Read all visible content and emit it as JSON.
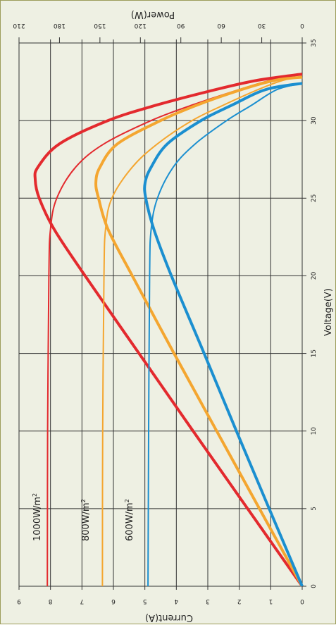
{
  "chart_data": {
    "type": "line",
    "orientation": "rotated-90-clockwise",
    "xlabel": "Voltage(V)",
    "ylabel_left": "Current(A)",
    "ylabel_right": "Power(W)",
    "xlim": [
      0,
      35
    ],
    "ylim_current": [
      0,
      9
    ],
    "ylim_power": [
      0,
      210
    ],
    "x_ticks": [
      "0",
      "5",
      "10",
      "15",
      "20",
      "25",
      "30",
      "35"
    ],
    "current_ticks": [
      "0",
      "1",
      "2",
      "3",
      "4",
      "5",
      "6",
      "7",
      "8",
      "9"
    ],
    "power_ticks": [
      "0",
      "30",
      "60",
      "90",
      "120",
      "150",
      "180",
      "210"
    ],
    "grid": true,
    "irradiance_labels": [
      {
        "base": "1000W/m",
        "sup": "2",
        "color": "#e32a2e"
      },
      {
        "base": "800W/m",
        "sup": "2",
        "color": "#f4a630"
      },
      {
        "base": "600W/m",
        "sup": "2",
        "color": "#1b8fd0"
      }
    ],
    "series": [
      {
        "name": "1000W/m2",
        "color": "#e32a2e",
        "isc": 8.1,
        "current_points": [
          [
            0,
            8.1
          ],
          [
            10,
            8.09
          ],
          [
            20,
            8.05
          ],
          [
            23,
            8.0
          ],
          [
            25,
            7.8
          ],
          [
            27,
            7.2
          ],
          [
            28.5,
            6.3
          ],
          [
            30,
            4.8
          ],
          [
            31,
            3.5
          ],
          [
            32,
            2.0
          ],
          [
            32.6,
            1.0
          ],
          [
            33.0,
            0.0
          ]
        ],
        "power_points": [
          [
            0,
            0
          ],
          [
            5,
            40.5
          ],
          [
            10,
            80.9
          ],
          [
            15,
            121
          ],
          [
            20,
            161
          ],
          [
            23,
            184
          ],
          [
            25,
            195
          ],
          [
            26.2,
            198
          ],
          [
            27,
            196
          ],
          [
            28.5,
            180
          ],
          [
            30,
            144
          ],
          [
            31,
            108
          ],
          [
            32,
            64
          ],
          [
            32.6,
            33
          ],
          [
            33.0,
            0
          ]
        ]
      },
      {
        "name": "800W/m2",
        "color": "#f4a630",
        "isc": 6.35,
        "current_points": [
          [
            0,
            6.35
          ],
          [
            10,
            6.34
          ],
          [
            20,
            6.3
          ],
          [
            23,
            6.25
          ],
          [
            25,
            6.05
          ],
          [
            27,
            5.4
          ],
          [
            28.5,
            4.6
          ],
          [
            30,
            3.5
          ],
          [
            31,
            2.5
          ],
          [
            32,
            1.4
          ],
          [
            32.6,
            0.6
          ],
          [
            32.8,
            0.0
          ]
        ],
        "power_points": [
          [
            0,
            0
          ],
          [
            5,
            31.7
          ],
          [
            10,
            63.4
          ],
          [
            15,
            95
          ],
          [
            20,
            126
          ],
          [
            23,
            144
          ],
          [
            25,
            151
          ],
          [
            26,
            153
          ],
          [
            27,
            150
          ],
          [
            28.5,
            137
          ],
          [
            30,
            105
          ],
          [
            31,
            78
          ],
          [
            32,
            45
          ],
          [
            32.6,
            20
          ],
          [
            32.8,
            0
          ]
        ]
      },
      {
        "name": "600W/m2",
        "color": "#1b8fd0",
        "isc": 4.9,
        "current_points": [
          [
            0,
            4.9
          ],
          [
            10,
            4.88
          ],
          [
            20,
            4.85
          ],
          [
            23,
            4.8
          ],
          [
            25,
            4.6
          ],
          [
            27,
            4.1
          ],
          [
            28.5,
            3.4
          ],
          [
            30,
            2.4
          ],
          [
            31,
            1.6
          ],
          [
            32,
            0.8
          ],
          [
            32.4,
            0.0
          ]
        ],
        "power_points": [
          [
            0,
            0
          ],
          [
            5,
            24.5
          ],
          [
            10,
            48.8
          ],
          [
            15,
            72.7
          ],
          [
            20,
            97
          ],
          [
            23,
            110
          ],
          [
            25,
            116
          ],
          [
            26,
            116.5
          ],
          [
            27,
            112
          ],
          [
            28.5,
            100
          ],
          [
            30,
            75
          ],
          [
            31,
            52
          ],
          [
            32,
            27
          ],
          [
            32.4,
            0
          ]
        ]
      }
    ]
  }
}
